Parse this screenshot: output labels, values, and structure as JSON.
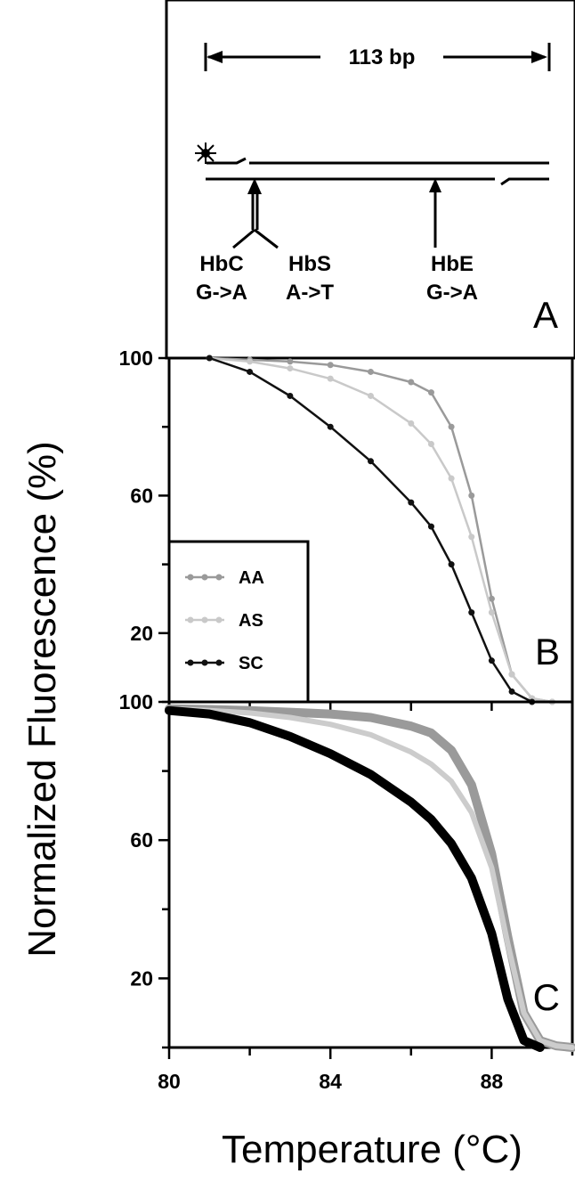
{
  "figure": {
    "ylabel": "Normalized Fluorescence (%)",
    "xlabel": "Temperature (°C)"
  },
  "panel_a": {
    "letter": "A",
    "length_label": "113 bp",
    "mutations": [
      {
        "name": "HbC",
        "change": "G->A"
      },
      {
        "name": "HbS",
        "change": "A->T"
      },
      {
        "name": "HbE",
        "change": "G->A"
      }
    ],
    "icons": [
      "sun-icon"
    ]
  },
  "chart_data": [
    {
      "type": "line",
      "panel": "B",
      "letter": "B",
      "xlim": [
        80,
        90
      ],
      "ylim": [
        0,
        100
      ],
      "y_ticks": [
        100,
        60,
        20
      ],
      "y_tick_labels": [
        "100",
        "60",
        "20"
      ],
      "legend": {
        "placement": "bottom-left",
        "entries": [
          "AA",
          "AS",
          "SC"
        ]
      },
      "series": [
        {
          "name": "AA",
          "color": "#9a9a9a",
          "marker": true,
          "x": [
            81,
            82,
            83,
            84,
            85,
            86,
            86.5,
            87,
            87.5,
            88,
            88.5,
            89,
            89.5
          ],
          "y": [
            100,
            99.5,
            99,
            98,
            96,
            93,
            90,
            80,
            60,
            30,
            8,
            1,
            0
          ]
        },
        {
          "name": "AS",
          "color": "#c9c9c9",
          "marker": true,
          "x": [
            81,
            82,
            83,
            84,
            85,
            86,
            86.5,
            87,
            87.5,
            88,
            88.5,
            89,
            89.5
          ],
          "y": [
            100,
            99,
            97,
            94,
            89,
            81,
            75,
            65,
            48,
            26,
            8,
            1,
            0
          ]
        },
        {
          "name": "SC",
          "color": "#111111",
          "marker": true,
          "x": [
            81,
            82,
            83,
            84,
            85,
            86,
            86.5,
            87,
            87.5,
            88,
            88.5,
            89
          ],
          "y": [
            100,
            96,
            89,
            80,
            70,
            58,
            51,
            40,
            26,
            12,
            3,
            0
          ]
        }
      ]
    },
    {
      "type": "line",
      "panel": "C",
      "letter": "C",
      "xlim": [
        80,
        90
      ],
      "ylim": [
        0,
        100
      ],
      "x_ticks": [
        80,
        84,
        88
      ],
      "x_tick_labels": [
        "80",
        "84",
        "88"
      ],
      "y_ticks": [
        100,
        60,
        20
      ],
      "y_tick_labels": [
        "100",
        "60",
        "20"
      ],
      "series": [
        {
          "name": "AA",
          "color": "#9a9a9a",
          "width": 10,
          "x": [
            80,
            81,
            82,
            83,
            84,
            85,
            86,
            86.5,
            87,
            87.5,
            88,
            88.4,
            88.8,
            89.2,
            89.6,
            90
          ],
          "y": [
            98,
            97.8,
            97.5,
            97,
            96.5,
            95.5,
            93,
            91,
            86,
            76,
            56,
            32,
            10,
            2,
            0.5,
            0
          ]
        },
        {
          "name": "AS",
          "color": "#cccccc",
          "width": 6,
          "x": [
            80,
            81,
            82,
            83,
            84,
            85,
            86,
            86.5,
            87,
            87.5,
            88,
            88.4,
            88.8,
            89.2,
            89.6,
            90
          ],
          "y": [
            98,
            97.5,
            96.8,
            95.5,
            93.5,
            90.5,
            85.5,
            82,
            77,
            68,
            52,
            30,
            10,
            2,
            0.5,
            0
          ]
        },
        {
          "name": "SC",
          "color": "#000000",
          "width": 10,
          "x": [
            80,
            81,
            82,
            83,
            84,
            85,
            86,
            86.5,
            87,
            87.5,
            88,
            88.4,
            88.8,
            89.2
          ],
          "y": [
            97.5,
            96.5,
            94,
            90,
            85,
            79,
            71,
            66,
            59,
            49,
            33,
            14,
            2,
            0
          ]
        }
      ]
    }
  ]
}
